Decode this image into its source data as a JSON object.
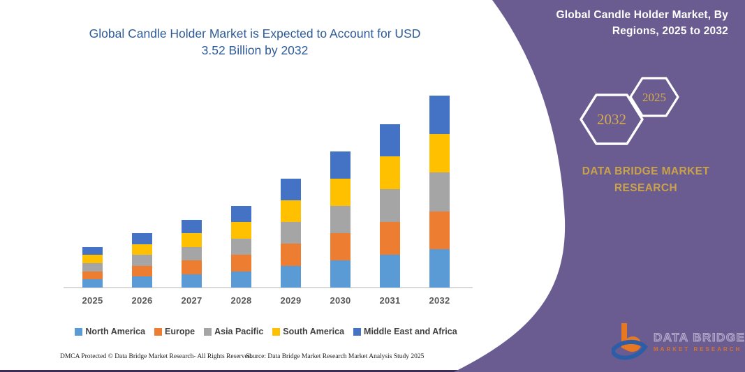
{
  "page": {
    "background": "#FFFFFF",
    "bottom_rule_color": "#3D2E55"
  },
  "chart": {
    "title_lines": [
      "Global Candle Holder Market is Expected to Account for USD",
      "3.52 Billion by 2032"
    ],
    "title_color": "#2E5B97",
    "axis_line_color": "#D9D9D9",
    "x_label_color": "#595959"
  },
  "chart_data": {
    "type": "bar",
    "stacked": true,
    "title": "Global Candle Holder Market is Expected to Account for USD 3.52 Billion by 2032",
    "unit": "USD billion",
    "categories": [
      "2025",
      "2026",
      "2027",
      "2028",
      "2029",
      "2030",
      "2031",
      "2032"
    ],
    "series": [
      {
        "name": "North America",
        "color": "#5B9BD5",
        "values": [
          0.15,
          0.2,
          0.25,
          0.3,
          0.4,
          0.5,
          0.6,
          0.7
        ]
      },
      {
        "name": "Europe",
        "color": "#ED7D31",
        "values": [
          0.15,
          0.2,
          0.25,
          0.3,
          0.4,
          0.5,
          0.6,
          0.7
        ]
      },
      {
        "name": "Asia Pacific",
        "color": "#A5A5A5",
        "values": [
          0.15,
          0.2,
          0.25,
          0.3,
          0.4,
          0.5,
          0.6,
          0.71
        ]
      },
      {
        "name": "South America",
        "color": "#FFC000",
        "values": [
          0.15,
          0.2,
          0.25,
          0.3,
          0.4,
          0.5,
          0.6,
          0.7
        ]
      },
      {
        "name": "Middle East and Africa",
        "color": "#4472C4",
        "values": [
          0.15,
          0.2,
          0.25,
          0.3,
          0.4,
          0.5,
          0.6,
          0.71
        ]
      }
    ],
    "totals_by_year": [
      0.75,
      1.0,
      1.25,
      1.5,
      2.0,
      2.5,
      3.0,
      3.52
    ],
    "ylim": [
      0,
      3.6
    ],
    "grid": false,
    "y_axis_visible": false,
    "legend_position": "bottom"
  },
  "footer": {
    "dmca": "DMCA Protected © Data Bridge Market Research-  All Rights Reserved.",
    "source": "Source: Data Bridge Market Research  Market Analysis Study 2025"
  },
  "right_panel": {
    "background": "#6A5C90",
    "title_lines": [
      "Global Candle Holder Market, By",
      "Regions, 2025 to 2032"
    ],
    "hexagons": [
      {
        "label": "2032"
      },
      {
        "label": "2025"
      }
    ],
    "hexagon_text_color": "#D5AC52",
    "brand_lines": [
      "DATA BRIDGE MARKET",
      "RESEARCH"
    ],
    "brand_color": "#C9A24B",
    "logo": {
      "wordmark": "DATA BRIDGE",
      "subtitle": "MARKET RESEARCH"
    }
  }
}
